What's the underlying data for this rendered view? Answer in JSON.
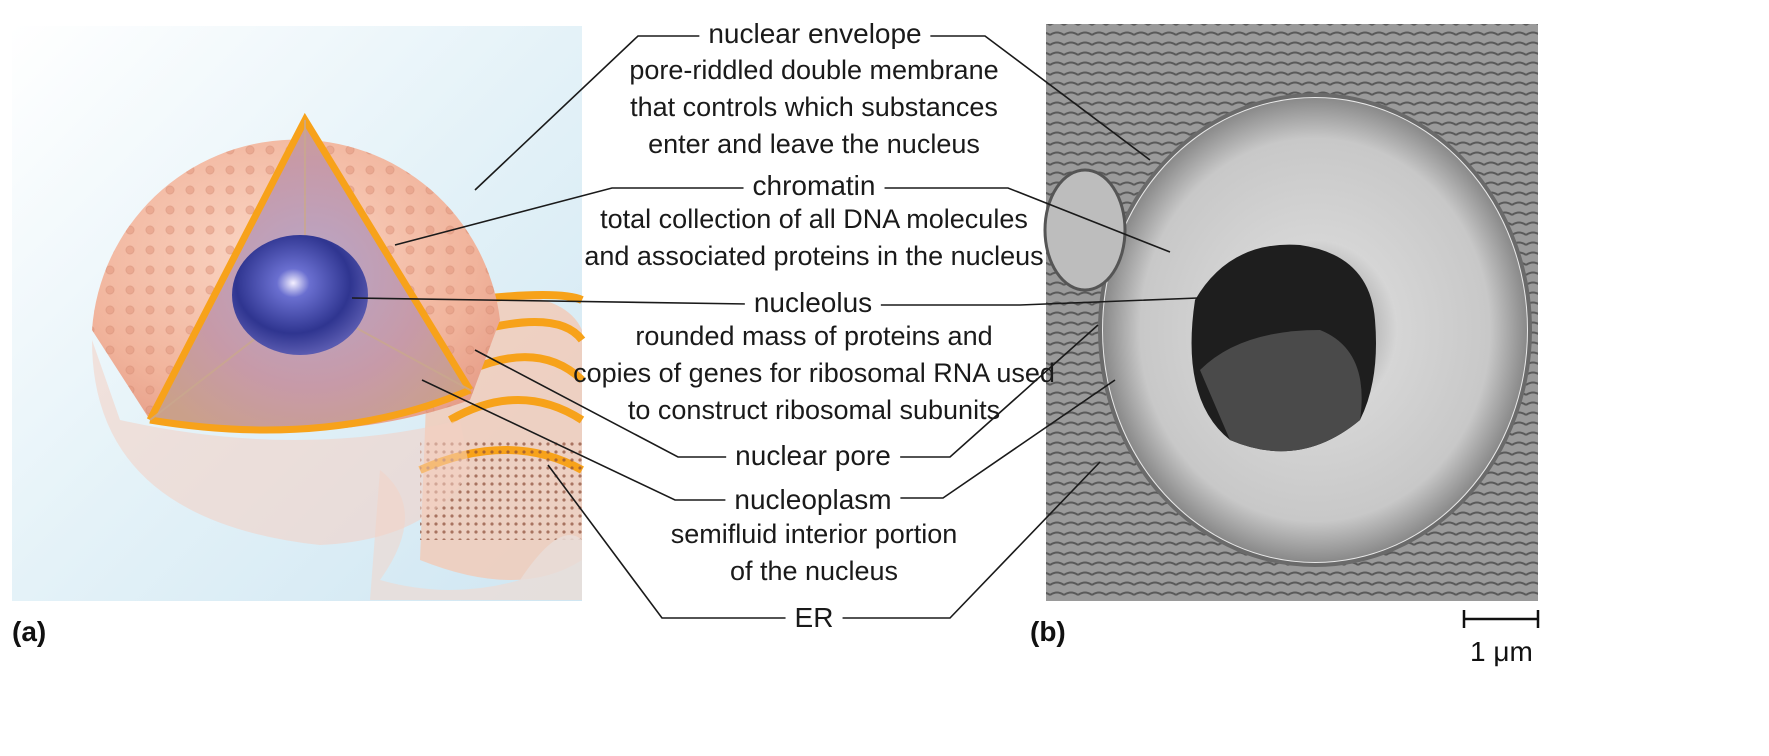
{
  "panels": {
    "a_label": "(a)",
    "b_label": "(b)"
  },
  "labels": [
    {
      "key": "nuclear_envelope",
      "term": "nuclear envelope",
      "description": [
        "pore-riddled double membrane",
        "that controls which substances",
        "enter and leave the nucleus"
      ]
    },
    {
      "key": "chromatin",
      "term": "chromatin",
      "description": [
        "total collection of all DNA molecules",
        "and associated proteins in the nucleus"
      ]
    },
    {
      "key": "nucleolus",
      "term": "nucleolus",
      "description": [
        "rounded mass of proteins and",
        "copies of genes for ribosomal RNA used",
        "to construct ribosomal subunits"
      ]
    },
    {
      "key": "nuclear_pore",
      "term": "nuclear pore",
      "description": []
    },
    {
      "key": "nucleoplasm",
      "term": "nucleoplasm",
      "description": [
        "semifluid interior portion",
        "of the nucleus"
      ]
    },
    {
      "key": "er",
      "term": "ER",
      "description": []
    }
  ],
  "scale_bar": {
    "label": "1 μm"
  },
  "colors": {
    "envelope": "#f2b49a",
    "envelope_edge": "#f7a21a",
    "nucleolus": "#3a3f9e",
    "background_tint": "#d8edf6",
    "micrograph_dark": "#2a2a2a",
    "micrograph_light": "#d9d9d9"
  }
}
